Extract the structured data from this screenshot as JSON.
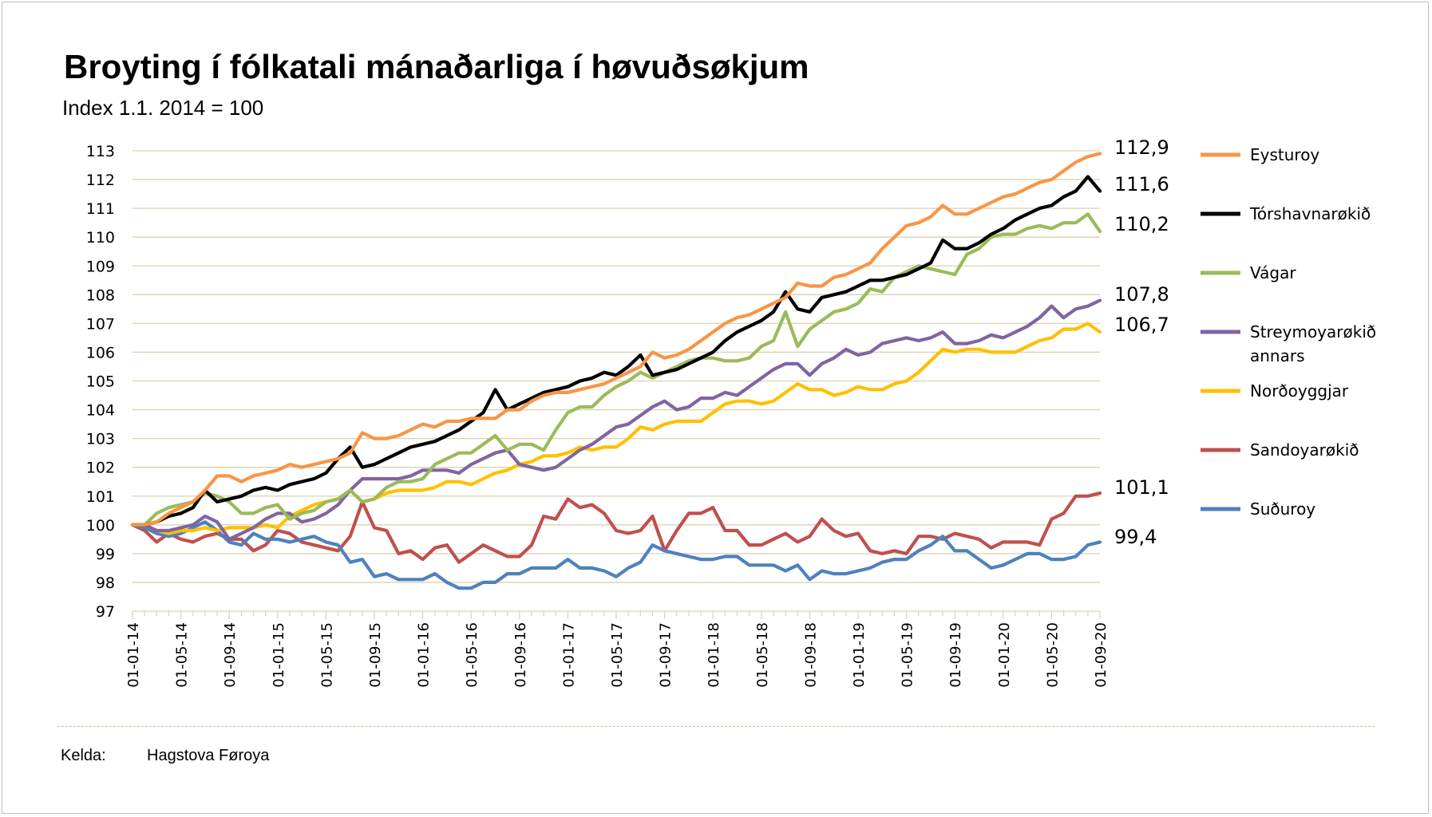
{
  "chart_data": {
    "type": "line",
    "title": "Broyting í fólkatali mánaðarliga í høvuðsøkjum",
    "subtitle": "Index 1.1. 2014 = 100",
    "source_label": "Kelda:",
    "source": "Hagstova Føroya",
    "ylim": [
      97,
      113
    ],
    "yticks": [
      97,
      98,
      99,
      100,
      101,
      102,
      103,
      104,
      105,
      106,
      107,
      108,
      109,
      110,
      111,
      112,
      113
    ],
    "grid": "horizontal",
    "legend_position": "right",
    "x_tick_labels": [
      "01-01-14",
      "01-05-14",
      "01-09-14",
      "01-01-15",
      "01-05-15",
      "01-09-15",
      "01-01-16",
      "01-05-16",
      "01-09-16",
      "01-01-17",
      "01-05-17",
      "01-09-17",
      "01-01-18",
      "01-05-18",
      "01-09-18",
      "01-01-19",
      "01-05-19",
      "01-09-19",
      "01-01-20",
      "01-05-20",
      "01-09-20"
    ],
    "months": 81,
    "series": [
      {
        "name": "Eysturoy",
        "color": "#f79646",
        "end_label": "112,9",
        "values": [
          100,
          100,
          100.1,
          100.4,
          100.6,
          100.8,
          101.2,
          101.7,
          101.7,
          101.5,
          101.7,
          101.8,
          101.9,
          102.1,
          102,
          102.1,
          102.2,
          102.3,
          102.5,
          103.2,
          103,
          103,
          103.1,
          103.3,
          103.5,
          103.4,
          103.6,
          103.6,
          103.7,
          103.7,
          103.7,
          104,
          104,
          104.3,
          104.5,
          104.6,
          104.6,
          104.7,
          104.8,
          104.9,
          105.1,
          105.3,
          105.5,
          106,
          105.8,
          105.9,
          106.1,
          106.4,
          106.7,
          107,
          107.2,
          107.3,
          107.5,
          107.7,
          107.9,
          108.4,
          108.3,
          108.3,
          108.6,
          108.7,
          108.9,
          109.1,
          109.6,
          110,
          110.4,
          110.5,
          110.7,
          111.1,
          110.8,
          110.8,
          111,
          111.2,
          111.4,
          111.5,
          111.7,
          111.9,
          112,
          112.3,
          112.6,
          112.8,
          112.9
        ]
      },
      {
        "name": "Tórshavnarøkið",
        "color": "#000000",
        "end_label": "111,6",
        "values": [
          100,
          100,
          100.1,
          100.3,
          100.4,
          100.6,
          101.2,
          100.8,
          100.9,
          101,
          101.2,
          101.3,
          101.2,
          101.4,
          101.5,
          101.6,
          101.8,
          102.3,
          102.7,
          102,
          102.1,
          102.3,
          102.5,
          102.7,
          102.8,
          102.9,
          103.1,
          103.3,
          103.6,
          103.9,
          104.7,
          104,
          104.2,
          104.4,
          104.6,
          104.7,
          104.8,
          105,
          105.1,
          105.3,
          105.2,
          105.5,
          105.9,
          105.2,
          105.3,
          105.4,
          105.6,
          105.8,
          106,
          106.4,
          106.7,
          106.9,
          107.1,
          107.4,
          108.1,
          107.5,
          107.4,
          107.9,
          108,
          108.1,
          108.3,
          108.5,
          108.5,
          108.6,
          108.7,
          108.9,
          109.1,
          109.9,
          109.6,
          109.6,
          109.8,
          110.1,
          110.3,
          110.6,
          110.8,
          111,
          111.1,
          111.4,
          111.6,
          112.1,
          111.6
        ]
      },
      {
        "name": "Vágar",
        "color": "#9bbb59",
        "end_label": "110,2",
        "values": [
          100,
          100,
          100.4,
          100.6,
          100.7,
          100.8,
          101.1,
          101,
          100.8,
          100.4,
          100.4,
          100.6,
          100.7,
          100.2,
          100.4,
          100.5,
          100.8,
          100.9,
          101.2,
          100.8,
          100.9,
          101.3,
          101.5,
          101.5,
          101.6,
          102.1,
          102.3,
          102.5,
          102.5,
          102.8,
          103.1,
          102.6,
          102.8,
          102.8,
          102.6,
          103.3,
          103.9,
          104.1,
          104.1,
          104.5,
          104.8,
          105,
          105.3,
          105.1,
          105.3,
          105.5,
          105.7,
          105.8,
          105.8,
          105.7,
          105.7,
          105.8,
          106.2,
          106.4,
          107.4,
          106.2,
          106.8,
          107.1,
          107.4,
          107.5,
          107.7,
          108.2,
          108.1,
          108.6,
          108.8,
          109,
          108.9,
          108.8,
          108.7,
          109.4,
          109.6,
          110,
          110.1,
          110.1,
          110.3,
          110.4,
          110.3,
          110.5,
          110.5,
          110.8,
          110.2
        ]
      },
      {
        "name": "Streymoyarøkið annars",
        "color": "#8064a2",
        "end_label": "107,8",
        "values": [
          100,
          100,
          99.8,
          99.8,
          99.9,
          100,
          100.3,
          100.1,
          99.5,
          99.7,
          99.9,
          100.2,
          100.4,
          100.4,
          100.1,
          100.2,
          100.4,
          100.7,
          101.2,
          101.6,
          101.6,
          101.6,
          101.6,
          101.7,
          101.9,
          101.9,
          101.9,
          101.8,
          102.1,
          102.3,
          102.5,
          102.6,
          102.1,
          102,
          101.9,
          102,
          102.3,
          102.6,
          102.8,
          103.1,
          103.4,
          103.5,
          103.8,
          104.1,
          104.3,
          104,
          104.1,
          104.4,
          104.4,
          104.6,
          104.5,
          104.8,
          105.1,
          105.4,
          105.6,
          105.6,
          105.2,
          105.6,
          105.8,
          106.1,
          105.9,
          106,
          106.3,
          106.4,
          106.5,
          106.4,
          106.5,
          106.7,
          106.3,
          106.3,
          106.4,
          106.6,
          106.5,
          106.7,
          106.9,
          107.2,
          107.6,
          107.2,
          107.5,
          107.6,
          107.8
        ]
      },
      {
        "name": "Norðoyggjar",
        "color": "#ffc000",
        "end_label": "106,7",
        "values": [
          100,
          100,
          99.8,
          99.7,
          99.8,
          99.8,
          99.9,
          99.8,
          99.9,
          99.9,
          99.9,
          100,
          99.9,
          100.3,
          100.5,
          100.7,
          100.8,
          100.9,
          101.2,
          100.8,
          100.9,
          101.1,
          101.2,
          101.2,
          101.2,
          101.3,
          101.5,
          101.5,
          101.4,
          101.6,
          101.8,
          101.9,
          102.1,
          102.2,
          102.4,
          102.4,
          102.5,
          102.7,
          102.6,
          102.7,
          102.7,
          103,
          103.4,
          103.3,
          103.5,
          103.6,
          103.6,
          103.6,
          103.9,
          104.2,
          104.3,
          104.3,
          104.2,
          104.3,
          104.6,
          104.9,
          104.7,
          104.7,
          104.5,
          104.6,
          104.8,
          104.7,
          104.7,
          104.9,
          105,
          105.3,
          105.7,
          106.1,
          106,
          106.1,
          106.1,
          106,
          106,
          106,
          106.2,
          106.4,
          106.5,
          106.8,
          106.8,
          107,
          106.7
        ]
      },
      {
        "name": "Sandoyarøkið",
        "color": "#c0504d",
        "end_label": "101,1",
        "values": [
          100,
          99.8,
          99.4,
          99.7,
          99.5,
          99.4,
          99.6,
          99.7,
          99.5,
          99.5,
          99.1,
          99.3,
          99.8,
          99.7,
          99.4,
          99.3,
          99.2,
          99.1,
          99.6,
          100.8,
          99.9,
          99.8,
          99,
          99.1,
          98.8,
          99.2,
          99.3,
          98.7,
          99,
          99.3,
          99.1,
          98.9,
          98.9,
          99.3,
          100.3,
          100.2,
          100.9,
          100.6,
          100.7,
          100.4,
          99.8,
          99.7,
          99.8,
          100.3,
          99.1,
          99.8,
          100.4,
          100.4,
          100.6,
          99.8,
          99.8,
          99.3,
          99.3,
          99.5,
          99.7,
          99.4,
          99.6,
          100.2,
          99.8,
          99.6,
          99.7,
          99.1,
          99,
          99.1,
          99,
          99.6,
          99.6,
          99.5,
          99.7,
          99.6,
          99.5,
          99.2,
          99.4,
          99.4,
          99.4,
          99.3,
          100.2,
          100.4,
          101,
          101,
          101.1
        ]
      },
      {
        "name": "Suðuroy",
        "color": "#4f81bd",
        "end_label": "99,4",
        "values": [
          100,
          99.9,
          99.7,
          99.6,
          99.7,
          99.9,
          100.1,
          99.8,
          99.4,
          99.3,
          99.7,
          99.5,
          99.5,
          99.4,
          99.5,
          99.6,
          99.4,
          99.3,
          98.7,
          98.8,
          98.2,
          98.3,
          98.1,
          98.1,
          98.1,
          98.3,
          98,
          97.8,
          97.8,
          98,
          98,
          98.3,
          98.3,
          98.5,
          98.5,
          98.5,
          98.8,
          98.5,
          98.5,
          98.4,
          98.2,
          98.5,
          98.7,
          99.3,
          99.1,
          99,
          98.9,
          98.8,
          98.8,
          98.9,
          98.9,
          98.6,
          98.6,
          98.6,
          98.4,
          98.6,
          98.1,
          98.4,
          98.3,
          98.3,
          98.4,
          98.5,
          98.7,
          98.8,
          98.8,
          99.1,
          99.3,
          99.6,
          99.1,
          99.1,
          98.8,
          98.5,
          98.6,
          98.8,
          99,
          99,
          98.8,
          98.8,
          98.9,
          99.3,
          99.4
        ]
      }
    ]
  }
}
